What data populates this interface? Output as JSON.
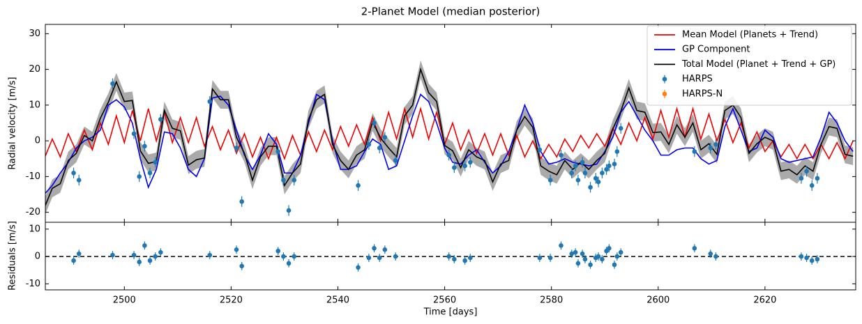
{
  "chart_data": [
    {
      "type": "line",
      "title": "2-Planet Model (median posterior)",
      "ylabel": "Radial velocity [m/s]",
      "xlim": [
        2485.2,
        2637
      ],
      "ylim": [
        -22.8,
        32.6
      ],
      "yticks": [
        -20,
        -10,
        0,
        10,
        20,
        30
      ],
      "legend": "upper right",
      "x": [
        2485,
        2486.5,
        2488,
        2489.5,
        2491,
        2492.5,
        2494,
        2495.5,
        2497,
        2498.5,
        2500,
        2501.5,
        2503,
        2504.5,
        2506,
        2507.5,
        2509,
        2510.5,
        2512,
        2513.5,
        2515,
        2516.5,
        2518,
        2519.5,
        2521,
        2522.5,
        2524,
        2525.5,
        2527,
        2528.5,
        2530,
        2531.5,
        2533,
        2534.5,
        2536,
        2537.5,
        2539,
        2540.5,
        2542,
        2543.5,
        2545,
        2546.5,
        2548,
        2549.5,
        2551,
        2552.5,
        2554,
        2555.5,
        2557,
        2558.5,
        2560,
        2561.5,
        2563,
        2564.5,
        2566,
        2567.5,
        2569,
        2570.5,
        2572,
        2573.5,
        2575,
        2576.5,
        2578,
        2579.5,
        2581,
        2582.5,
        2584,
        2585.5,
        2587,
        2588.5,
        2590,
        2591.5,
        2593,
        2594.5,
        2596,
        2597.5,
        2599,
        2600.5,
        2602,
        2603.5,
        2605,
        2606.5,
        2608,
        2609.5,
        2611,
        2612.5,
        2614,
        2615.5,
        2617,
        2618.5,
        2620,
        2621.5,
        2623,
        2624.5,
        2626,
        2627.5,
        2629,
        2630.5,
        2632,
        2633.5,
        2635,
        2636.5
      ],
      "band": {
        "color": "#aaaaaa",
        "error": 2.5,
        "series": 2
      },
      "series": [
        {
          "name": "Mean Model (Planets + Trend)",
          "color": "#ee0000",
          "values": [
            -5,
            0.5,
            -4.5,
            2,
            -3,
            3,
            -2.5,
            5,
            -1,
            7,
            -0.5,
            8.5,
            0,
            9,
            0,
            8,
            -0.5,
            6.5,
            -0.5,
            6.5,
            -1.5,
            4,
            -2.5,
            3,
            -3.5,
            2,
            -4.5,
            1,
            -5,
            1,
            -5,
            1.5,
            -4,
            2.5,
            -3,
            3,
            -2.5,
            4,
            -1.5,
            4.5,
            -1,
            6.5,
            0,
            8,
            0.5,
            9,
            1,
            9,
            0.5,
            8,
            -1,
            5,
            -2.5,
            3,
            -3.5,
            2,
            -4,
            2,
            -4,
            1.5,
            -4.5,
            0,
            -5,
            -1,
            -4.5,
            0.5,
            -3,
            1.5,
            -2,
            2,
            -1.5,
            3.5,
            -1,
            5,
            0,
            6.5,
            0.5,
            8.5,
            1,
            9,
            1,
            9,
            0.5,
            7.5,
            0,
            6,
            -0.5,
            5,
            -2,
            2.5,
            -3,
            0,
            -4.5,
            -1,
            -5,
            -1,
            -5,
            -1,
            -5,
            -0.5,
            -5,
            0
          ]
        },
        {
          "name": "GP Component",
          "color": "#0000ee",
          "values": [
            -15,
            -12.5,
            -9,
            -6,
            -2,
            0,
            1,
            3,
            10,
            11.5,
            9.5,
            5,
            -5,
            -13,
            -8,
            2.5,
            2,
            -2,
            -8,
            -10,
            -5,
            12,
            12.5,
            10,
            3,
            -4,
            -8,
            -4,
            2,
            -1,
            -9,
            -9,
            -4,
            5,
            13,
            11.5,
            0,
            -8,
            -8,
            -7,
            -3,
            0.5,
            -1,
            -8,
            -7,
            0,
            7,
            13,
            11,
            5,
            -2,
            -6,
            -6.5,
            -4,
            -2.5,
            -6,
            -9,
            -7,
            -3,
            3,
            10,
            5,
            -3,
            -6.5,
            -6,
            -5,
            -6,
            -6.5,
            -7,
            -6.5,
            -3,
            1,
            8,
            11,
            7,
            3,
            0,
            -4,
            -4,
            -2.5,
            -2,
            -2,
            -5,
            -6.5,
            -5.5,
            4,
            9,
            3,
            -3,
            -2,
            3,
            1,
            -5,
            -6,
            -5.5,
            -5,
            -4.5,
            1,
            8,
            5,
            0,
            -3
          ]
        },
        {
          "name": "Total Model (Planet + Trend + GP)",
          "color": "#000000",
          "values": [
            -18.8,
            -13.3,
            -12,
            -5.5,
            -3.5,
            1.5,
            0,
            6.3,
            10.8,
            16.5,
            11,
            11.3,
            -2.8,
            -6.3,
            -5.8,
            8.5,
            3.5,
            2.8,
            -6.8,
            -5.3,
            -4.8,
            14.5,
            11.5,
            11.5,
            1,
            -3.5,
            -11,
            -4.5,
            -1.5,
            -1.5,
            -12.5,
            -9,
            -6.5,
            6,
            11.5,
            13,
            -1,
            -5.5,
            -8,
            -4,
            -2.5,
            5.3,
            0.8,
            -2,
            -4.5,
            7,
            10,
            20,
            13.5,
            11,
            -1.3,
            -2.8,
            -7.5,
            -2.5,
            -4.5,
            -5.5,
            -11.5,
            -6.5,
            -5.5,
            3,
            6.8,
            3.8,
            -7,
            -8.5,
            -9.5,
            -5.5,
            -8,
            -6,
            -8,
            -5.5,
            -3.5,
            3.3,
            8.3,
            14.8,
            8.5,
            8,
            2.3,
            2.5,
            -1,
            4.5,
            1,
            5,
            -2.5,
            -0.8,
            -3.8,
            8.5,
            10,
            6.5,
            -3.5,
            -0.8,
            1,
            0,
            -8.5,
            -8,
            -9.5,
            -7,
            -8.5,
            -1,
            4,
            3.5,
            -3.8,
            -4.3
          ]
        },
        {
          "name": "HARPS",
          "color": "#1f77b4",
          "kind": "errorbar",
          "x": [
            2490.5,
            2491.5,
            2497.8,
            2501.8,
            2502.8,
            2503.8,
            2504.8,
            2505.8,
            2506.8,
            2516,
            2521,
            2522,
            2528.8,
            2529.8,
            2530.8,
            2531.8,
            2543.8,
            2545.8,
            2546.8,
            2547.8,
            2548.8,
            2550.8,
            2560.8,
            2561.8,
            2563.8,
            2564.8,
            2577.8,
            2579.8,
            2581.8,
            2583.8,
            2584.5,
            2585,
            2585.8,
            2586.3,
            2587.3,
            2588.3,
            2588.8,
            2589.5,
            2590.3,
            2590.8,
            2591.8,
            2592.3,
            2593,
            2606.8,
            2609.8,
            2610.8,
            2626.8,
            2627.8,
            2628.8,
            2629.8
          ],
          "values": [
            -9,
            -11,
            16,
            2,
            -10,
            -1.5,
            -9,
            -6,
            6,
            11,
            -2,
            -17,
            -3,
            -11,
            -19.5,
            -11,
            -12.5,
            -1,
            5,
            -2,
            1,
            -5.5,
            -4,
            -7.5,
            -7,
            -6,
            -2.5,
            -11,
            -4,
            -9,
            -7,
            -11,
            -6,
            -9,
            -13,
            -10.5,
            -11.5,
            -9,
            -8,
            -7,
            -6.5,
            -3,
            3.5,
            -3,
            -2,
            -1,
            -10.5,
            -8.5,
            -12.5,
            -10.5
          ],
          "errors": [
            1.5,
            1.5,
            1.5,
            1.5,
            1.5,
            1.5,
            1.5,
            1.5,
            1.5,
            1.5,
            1.5,
            1.5,
            1.5,
            1.5,
            1.5,
            1.5,
            1.5,
            1.5,
            1.5,
            1.5,
            1.5,
            1.5,
            1.5,
            1.5,
            1.5,
            1.5,
            1.5,
            1.5,
            1.5,
            1.5,
            1.5,
            1.5,
            1.5,
            1.5,
            1.5,
            1.5,
            1.5,
            1.5,
            1.5,
            1.5,
            1.5,
            1.5,
            1.5,
            1.5,
            1.5,
            1.5,
            1.5,
            1.5,
            1.5,
            1.5
          ]
        },
        {
          "name": "HARPS-N",
          "color": "#ff7f0e",
          "kind": "errorbar",
          "x": [],
          "values": [],
          "errors": []
        }
      ]
    },
    {
      "type": "residual",
      "ylabel": "Residuals [m/s]",
      "xlabel": "Time [days]",
      "xlim": [
        2485.2,
        2637
      ],
      "ylim": [
        -12.2,
        12.5
      ],
      "yticks": [
        -10,
        0,
        10
      ],
      "xticks": [
        2500,
        2520,
        2540,
        2560,
        2580,
        2600,
        2620
      ],
      "hline": 0,
      "series": [
        {
          "color": "#1f77b4",
          "kind": "errorbar",
          "x": [
            2490.5,
            2491.5,
            2497.8,
            2501.8,
            2502.8,
            2503.8,
            2504.8,
            2505.8,
            2506.8,
            2516,
            2521,
            2522,
            2528.8,
            2529.8,
            2530.8,
            2531.8,
            2543.8,
            2545.8,
            2546.8,
            2547.8,
            2548.8,
            2550.8,
            2560.8,
            2561.8,
            2563.8,
            2564.8,
            2577.8,
            2579.8,
            2581.8,
            2583.8,
            2584.5,
            2585,
            2585.8,
            2586.3,
            2587.3,
            2588.3,
            2588.8,
            2589.5,
            2590.3,
            2590.8,
            2591.8,
            2592.3,
            2593,
            2606.8,
            2609.8,
            2610.8,
            2626.8,
            2627.8,
            2628.8,
            2629.8
          ],
          "values": [
            -1.5,
            1,
            0.5,
            0.5,
            -2,
            4,
            -1.5,
            0,
            1.5,
            0.5,
            2.5,
            -3.5,
            2,
            0,
            -2.5,
            0,
            -4,
            -0.5,
            3,
            -0.5,
            2.5,
            0,
            0,
            -1,
            -1.5,
            -0.5,
            -0.5,
            -0.5,
            4,
            1,
            1.5,
            -2.5,
            1,
            -1,
            -3,
            -0.5,
            0,
            -1,
            2,
            3,
            -3,
            0,
            1.5,
            3,
            1,
            0,
            0,
            -0.5,
            -1.5,
            -1
          ],
          "errors": [
            1.5,
            1.5,
            1.5,
            1.5,
            1.5,
            1.5,
            1.5,
            1.5,
            1.5,
            1.5,
            1.5,
            1.5,
            1.5,
            1.5,
            1.5,
            1.5,
            1.5,
            1.5,
            1.5,
            1.5,
            1.5,
            1.5,
            1.5,
            1.5,
            1.5,
            1.5,
            1.5,
            1.5,
            1.5,
            1.5,
            1.5,
            1.5,
            1.5,
            1.5,
            1.5,
            1.5,
            1.5,
            1.5,
            1.5,
            1.5,
            1.5,
            1.5,
            1.5,
            1.5,
            1.5,
            1.5,
            1.5,
            1.5,
            1.5,
            1.5
          ]
        }
      ]
    }
  ]
}
